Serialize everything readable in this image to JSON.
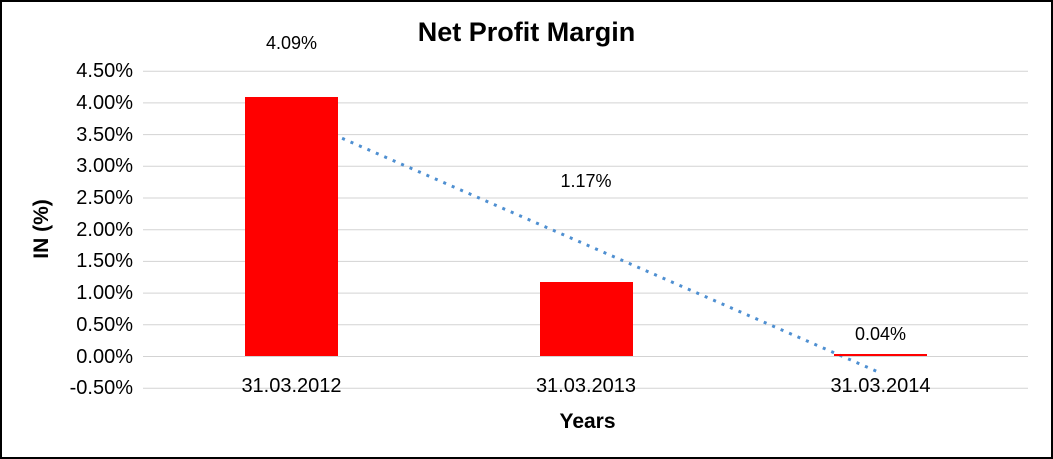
{
  "chart_data": {
    "type": "bar",
    "title": "Net Profit Margin",
    "xlabel": "Years",
    "ylabel": "IN (%)",
    "categories": [
      "31.03.2012",
      "31.03.2013",
      "31.03.2014"
    ],
    "values": [
      4.09,
      1.17,
      0.04
    ],
    "value_labels": [
      "4.09%",
      "1.17%",
      "0.04%"
    ],
    "ylim": [
      -0.5,
      4.5
    ],
    "ytick_step": 0.5,
    "ytick_labels": [
      "4.50%",
      "4.00%",
      "3.50%",
      "3.00%",
      "2.50%",
      "2.00%",
      "1.50%",
      "1.00%",
      "0.50%",
      "0.00%",
      "-0.50%"
    ],
    "grid": true,
    "legend": "none",
    "trendline": {
      "type": "linear",
      "style": "dotted",
      "start_value": 3.79,
      "end_value": -0.26
    },
    "colors": {
      "bar": "#FF0000",
      "trendline": "#4E8FD1",
      "gridline": "#D3D3D3",
      "text": "#000000",
      "background": "#FFFFFF",
      "frame": "#000000"
    }
  }
}
